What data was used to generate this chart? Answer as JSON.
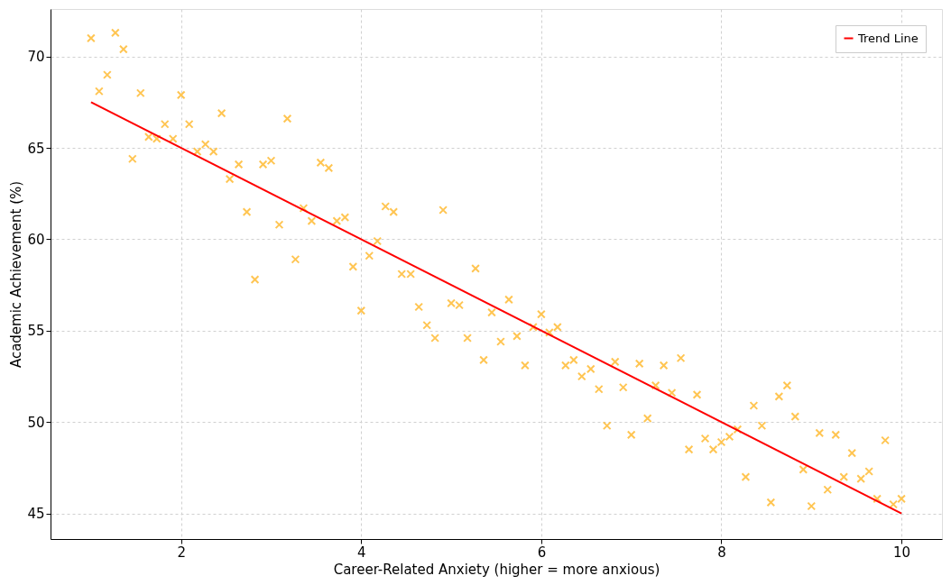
{
  "chart_data": {
    "type": "scatter",
    "xlabel": "Career-Related Anxiety (higher = more anxious)",
    "ylabel": "Academic Achievement (%)",
    "xlim": [
      0.55,
      10.45
    ],
    "ylim": [
      43.6,
      72.6
    ],
    "xticks": [
      2,
      4,
      6,
      8,
      10
    ],
    "yticks": [
      45,
      50,
      55,
      60,
      65,
      70
    ],
    "grid": true,
    "legend": "top right",
    "series": [
      {
        "marker": "cross",
        "color": "#ffbf40",
        "x": [
          1.0,
          1.09,
          1.18,
          1.27,
          1.36,
          1.46,
          1.55,
          1.64,
          1.73,
          1.82,
          1.91,
          2.0,
          2.09,
          2.18,
          2.27,
          2.36,
          2.45,
          2.54,
          2.64,
          2.73,
          2.82,
          2.91,
          3.0,
          3.09,
          3.18,
          3.27,
          3.36,
          3.45,
          3.55,
          3.64,
          3.73,
          3.82,
          3.91,
          4.0,
          4.09,
          4.18,
          4.27,
          4.36,
          4.45,
          4.55,
          4.64,
          4.73,
          4.82,
          4.91,
          5.0,
          5.09,
          5.18,
          5.27,
          5.36,
          5.45,
          5.55,
          5.64,
          5.73,
          5.82,
          5.91,
          6.0,
          6.09,
          6.18,
          6.27,
          6.36,
          6.45,
          6.55,
          6.64,
          6.73,
          6.82,
          6.91,
          7.0,
          7.09,
          7.18,
          7.27,
          7.36,
          7.45,
          7.55,
          7.64,
          7.73,
          7.82,
          7.91,
          8.0,
          8.09,
          8.18,
          8.27,
          8.36,
          8.45,
          8.55,
          8.64,
          8.73,
          8.82,
          8.91,
          9.0,
          9.09,
          9.18,
          9.27,
          9.36,
          9.45,
          9.55,
          9.64,
          9.73,
          9.82,
          9.91,
          10.0
        ],
        "values": [
          71.0,
          68.1,
          69.0,
          71.3,
          70.4,
          64.4,
          68.0,
          65.6,
          65.5,
          66.3,
          65.5,
          67.9,
          66.3,
          64.8,
          65.2,
          64.8,
          66.9,
          63.3,
          64.1,
          61.5,
          57.8,
          64.1,
          64.3,
          60.8,
          66.6,
          58.9,
          61.7,
          61.0,
          64.2,
          63.9,
          61.0,
          61.2,
          58.5,
          56.1,
          59.1,
          59.9,
          61.8,
          61.5,
          58.1,
          58.1,
          56.3,
          55.3,
          54.6,
          61.6,
          56.5,
          56.4,
          54.6,
          58.4,
          53.4,
          56.0,
          54.4,
          56.7,
          54.7,
          53.1,
          55.2,
          55.9,
          54.9,
          55.2,
          53.1,
          53.4,
          52.5,
          52.9,
          51.8,
          49.8,
          53.3,
          51.9,
          49.3,
          53.2,
          50.2,
          52.0,
          53.1,
          51.6,
          53.5,
          48.5,
          51.5,
          49.1,
          48.5,
          48.9,
          49.2,
          49.6,
          47.0,
          50.9,
          49.8,
          45.6,
          51.4,
          52.0,
          50.3,
          47.4,
          45.4,
          49.4,
          46.3,
          49.3,
          47.0,
          48.3,
          46.9,
          47.3,
          45.8,
          49.0,
          45.5,
          45.8
        ]
      },
      {
        "type": "line",
        "name": "Trend Line",
        "color": "#ff0000",
        "x": [
          1.0,
          10.0
        ],
        "values": [
          67.5,
          45.0
        ]
      }
    ]
  }
}
